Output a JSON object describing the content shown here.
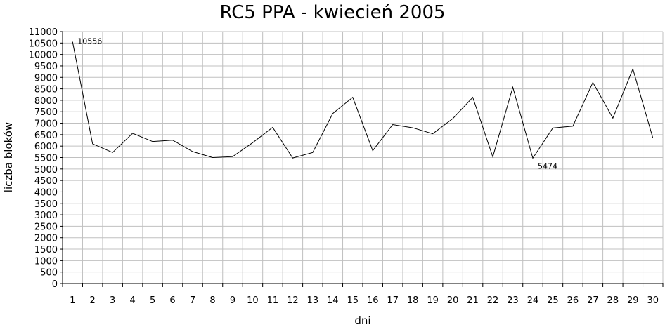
{
  "chart_data": {
    "type": "line",
    "title": "RC5 PPA - kwiecień 2005",
    "xlabel": "dni",
    "ylabel": "liczba bloków",
    "x": [
      1,
      2,
      3,
      4,
      5,
      6,
      7,
      8,
      9,
      10,
      11,
      12,
      13,
      14,
      15,
      16,
      17,
      18,
      19,
      20,
      21,
      22,
      23,
      24,
      25,
      26,
      27,
      28,
      29,
      30
    ],
    "series": [
      {
        "values": [
          10556,
          6100,
          5720,
          6560,
          6200,
          6260,
          5760,
          5500,
          5540,
          6150,
          6820,
          5480,
          5720,
          7420,
          8130,
          5800,
          6940,
          6800,
          6540,
          7200,
          8130,
          5530,
          8570,
          5474,
          6790,
          6870,
          8780,
          7220,
          9370,
          6350
        ]
      }
    ],
    "ylim": [
      0,
      11000
    ],
    "ytick_step": 500,
    "grid": true,
    "legend": "none",
    "annotations": [
      {
        "x": 1,
        "text": "10556"
      },
      {
        "x": 24,
        "text": "5474"
      }
    ],
    "colors": {
      "line": "#000000",
      "grid": "#c0c0c0",
      "background": "#ffffff"
    }
  }
}
